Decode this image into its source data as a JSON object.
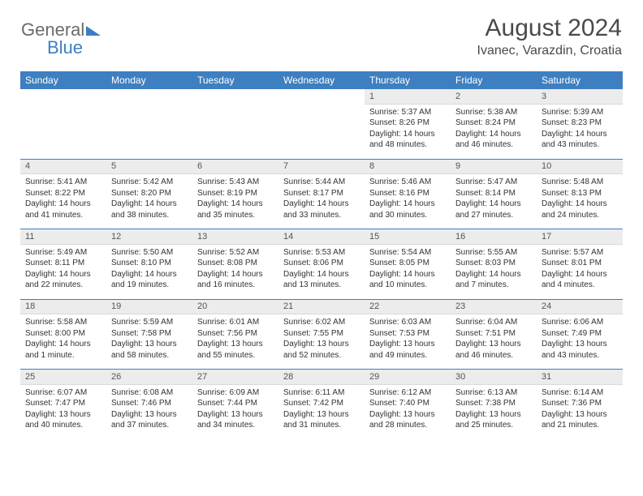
{
  "logo": {
    "text1": "General",
    "text2": "Blue"
  },
  "title": "August 2024",
  "location": "Ivanec, Varazdin, Croatia",
  "colors": {
    "header_bg": "#3e7fc1",
    "header_text": "#ffffff",
    "daynum_bg": "#ececec",
    "divider": "#3e7fc1",
    "body_text": "#333333",
    "title_text": "#4a4a4a",
    "logo_gray": "#6b6b6b"
  },
  "typography": {
    "title_fontsize": 30,
    "location_fontsize": 16,
    "dayheader_fontsize": 12,
    "daynum_fontsize": 11,
    "cell_fontsize": 10
  },
  "day_headers": [
    "Sunday",
    "Monday",
    "Tuesday",
    "Wednesday",
    "Thursday",
    "Friday",
    "Saturday"
  ],
  "weeks": [
    [
      null,
      null,
      null,
      null,
      {
        "n": "1",
        "sr": "Sunrise: 5:37 AM",
        "ss": "Sunset: 8:26 PM",
        "dl": "Daylight: 14 hours and 48 minutes."
      },
      {
        "n": "2",
        "sr": "Sunrise: 5:38 AM",
        "ss": "Sunset: 8:24 PM",
        "dl": "Daylight: 14 hours and 46 minutes."
      },
      {
        "n": "3",
        "sr": "Sunrise: 5:39 AM",
        "ss": "Sunset: 8:23 PM",
        "dl": "Daylight: 14 hours and 43 minutes."
      }
    ],
    [
      {
        "n": "4",
        "sr": "Sunrise: 5:41 AM",
        "ss": "Sunset: 8:22 PM",
        "dl": "Daylight: 14 hours and 41 minutes."
      },
      {
        "n": "5",
        "sr": "Sunrise: 5:42 AM",
        "ss": "Sunset: 8:20 PM",
        "dl": "Daylight: 14 hours and 38 minutes."
      },
      {
        "n": "6",
        "sr": "Sunrise: 5:43 AM",
        "ss": "Sunset: 8:19 PM",
        "dl": "Daylight: 14 hours and 35 minutes."
      },
      {
        "n": "7",
        "sr": "Sunrise: 5:44 AM",
        "ss": "Sunset: 8:17 PM",
        "dl": "Daylight: 14 hours and 33 minutes."
      },
      {
        "n": "8",
        "sr": "Sunrise: 5:46 AM",
        "ss": "Sunset: 8:16 PM",
        "dl": "Daylight: 14 hours and 30 minutes."
      },
      {
        "n": "9",
        "sr": "Sunrise: 5:47 AM",
        "ss": "Sunset: 8:14 PM",
        "dl": "Daylight: 14 hours and 27 minutes."
      },
      {
        "n": "10",
        "sr": "Sunrise: 5:48 AM",
        "ss": "Sunset: 8:13 PM",
        "dl": "Daylight: 14 hours and 24 minutes."
      }
    ],
    [
      {
        "n": "11",
        "sr": "Sunrise: 5:49 AM",
        "ss": "Sunset: 8:11 PM",
        "dl": "Daylight: 14 hours and 22 minutes."
      },
      {
        "n": "12",
        "sr": "Sunrise: 5:50 AM",
        "ss": "Sunset: 8:10 PM",
        "dl": "Daylight: 14 hours and 19 minutes."
      },
      {
        "n": "13",
        "sr": "Sunrise: 5:52 AM",
        "ss": "Sunset: 8:08 PM",
        "dl": "Daylight: 14 hours and 16 minutes."
      },
      {
        "n": "14",
        "sr": "Sunrise: 5:53 AM",
        "ss": "Sunset: 8:06 PM",
        "dl": "Daylight: 14 hours and 13 minutes."
      },
      {
        "n": "15",
        "sr": "Sunrise: 5:54 AM",
        "ss": "Sunset: 8:05 PM",
        "dl": "Daylight: 14 hours and 10 minutes."
      },
      {
        "n": "16",
        "sr": "Sunrise: 5:55 AM",
        "ss": "Sunset: 8:03 PM",
        "dl": "Daylight: 14 hours and 7 minutes."
      },
      {
        "n": "17",
        "sr": "Sunrise: 5:57 AM",
        "ss": "Sunset: 8:01 PM",
        "dl": "Daylight: 14 hours and 4 minutes."
      }
    ],
    [
      {
        "n": "18",
        "sr": "Sunrise: 5:58 AM",
        "ss": "Sunset: 8:00 PM",
        "dl": "Daylight: 14 hours and 1 minute."
      },
      {
        "n": "19",
        "sr": "Sunrise: 5:59 AM",
        "ss": "Sunset: 7:58 PM",
        "dl": "Daylight: 13 hours and 58 minutes."
      },
      {
        "n": "20",
        "sr": "Sunrise: 6:01 AM",
        "ss": "Sunset: 7:56 PM",
        "dl": "Daylight: 13 hours and 55 minutes."
      },
      {
        "n": "21",
        "sr": "Sunrise: 6:02 AM",
        "ss": "Sunset: 7:55 PM",
        "dl": "Daylight: 13 hours and 52 minutes."
      },
      {
        "n": "22",
        "sr": "Sunrise: 6:03 AM",
        "ss": "Sunset: 7:53 PM",
        "dl": "Daylight: 13 hours and 49 minutes."
      },
      {
        "n": "23",
        "sr": "Sunrise: 6:04 AM",
        "ss": "Sunset: 7:51 PM",
        "dl": "Daylight: 13 hours and 46 minutes."
      },
      {
        "n": "24",
        "sr": "Sunrise: 6:06 AM",
        "ss": "Sunset: 7:49 PM",
        "dl": "Daylight: 13 hours and 43 minutes."
      }
    ],
    [
      {
        "n": "25",
        "sr": "Sunrise: 6:07 AM",
        "ss": "Sunset: 7:47 PM",
        "dl": "Daylight: 13 hours and 40 minutes."
      },
      {
        "n": "26",
        "sr": "Sunrise: 6:08 AM",
        "ss": "Sunset: 7:46 PM",
        "dl": "Daylight: 13 hours and 37 minutes."
      },
      {
        "n": "27",
        "sr": "Sunrise: 6:09 AM",
        "ss": "Sunset: 7:44 PM",
        "dl": "Daylight: 13 hours and 34 minutes."
      },
      {
        "n": "28",
        "sr": "Sunrise: 6:11 AM",
        "ss": "Sunset: 7:42 PM",
        "dl": "Daylight: 13 hours and 31 minutes."
      },
      {
        "n": "29",
        "sr": "Sunrise: 6:12 AM",
        "ss": "Sunset: 7:40 PM",
        "dl": "Daylight: 13 hours and 28 minutes."
      },
      {
        "n": "30",
        "sr": "Sunrise: 6:13 AM",
        "ss": "Sunset: 7:38 PM",
        "dl": "Daylight: 13 hours and 25 minutes."
      },
      {
        "n": "31",
        "sr": "Sunrise: 6:14 AM",
        "ss": "Sunset: 7:36 PM",
        "dl": "Daylight: 13 hours and 21 minutes."
      }
    ]
  ]
}
